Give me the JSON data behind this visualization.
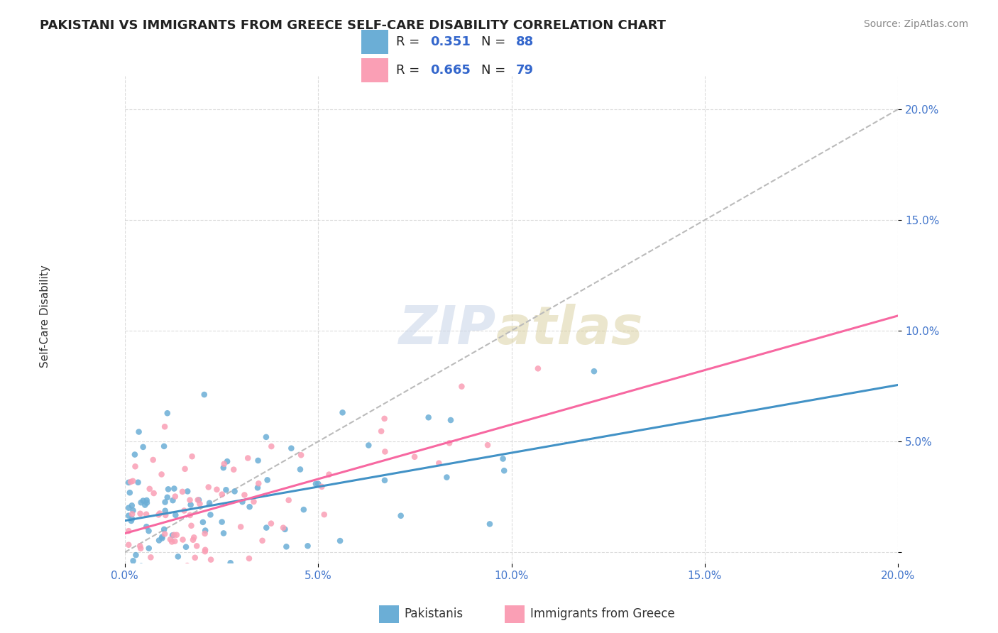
{
  "title": "PAKISTANI VS IMMIGRANTS FROM GREECE SELF-CARE DISABILITY CORRELATION CHART",
  "source": "Source: ZipAtlas.com",
  "ylabel": "Self-Care Disability",
  "xlim": [
    0.0,
    0.2
  ],
  "ylim": [
    -0.005,
    0.215
  ],
  "xticks": [
    0.0,
    0.05,
    0.1,
    0.15,
    0.2
  ],
  "xtick_labels": [
    "0.0%",
    "5.0%",
    "10.0%",
    "15.0%",
    "20.0%"
  ],
  "ytick_positions": [
    0.0,
    0.05,
    0.1,
    0.15,
    0.2
  ],
  "ytick_labels": [
    "",
    "5.0%",
    "10.0%",
    "15.0%",
    "20.0%"
  ],
  "legend1_R": "0.351",
  "legend1_N": "88",
  "legend2_R": "0.665",
  "legend2_N": "79",
  "blue_color": "#6baed6",
  "pink_color": "#fa9fb5",
  "blue_line_color": "#4292c6",
  "pink_line_color": "#f768a1",
  "diag_color": "#bbbbbb",
  "legend_label1": "Pakistanis",
  "legend_label2": "Immigrants from Greece"
}
